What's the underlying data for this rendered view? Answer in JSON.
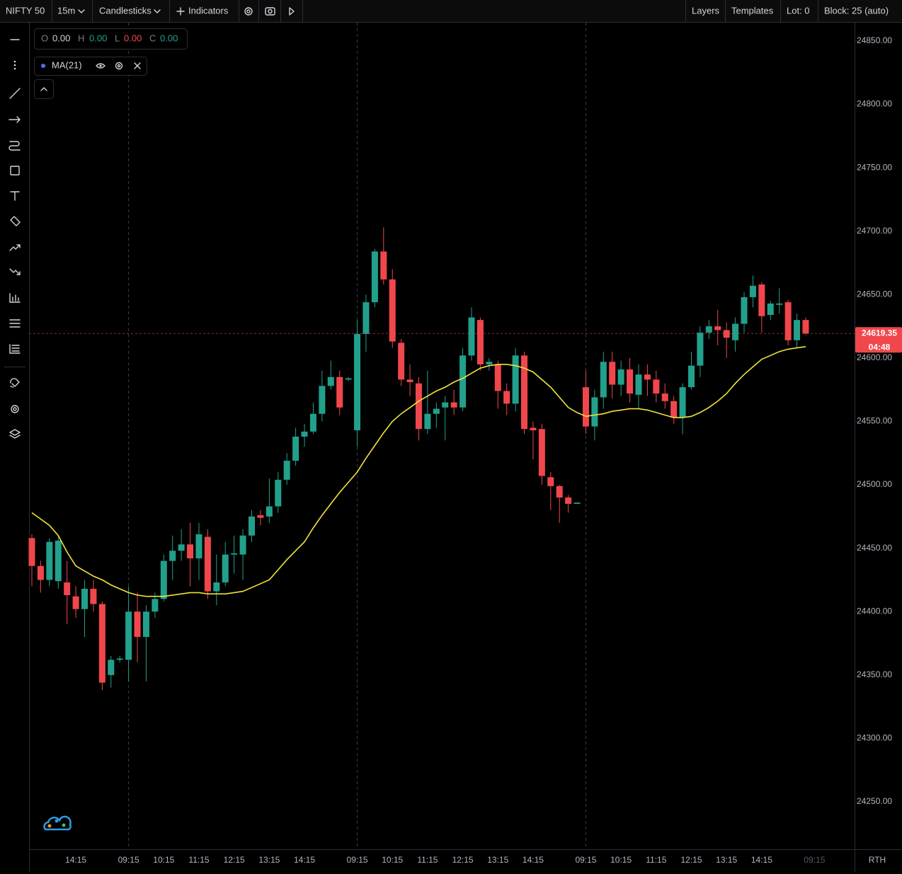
{
  "toolbar": {
    "symbol": "NIFTY 50",
    "interval": "15m",
    "chart_style": "Candlesticks",
    "indicators": "Indicators",
    "layers": "Layers",
    "templates": "Templates",
    "lot": "Lot: 0",
    "block": "Block: 25 (auto)"
  },
  "legend": {
    "o_label": "O",
    "o": "0.00",
    "h_label": "H",
    "h": "0.00",
    "l_label": "L",
    "l": "0.00",
    "c_label": "C",
    "c": "0.00"
  },
  "chart_data": {
    "type": "candlestick",
    "categories": [
      null,
      null,
      null,
      null,
      null,
      "14:15",
      null,
      null,
      null,
      null,
      null,
      "09:15",
      null,
      null,
      null,
      "10:15",
      null,
      null,
      null,
      "11:15",
      null,
      null,
      null,
      "12:15",
      null,
      null,
      null,
      "13:15",
      null,
      null,
      null,
      "14:15",
      null,
      null,
      null,
      null,
      null,
      "09:15",
      null,
      null,
      null,
      "10:15",
      null,
      null,
      null,
      "11:15",
      null,
      null,
      null,
      "12:15",
      null,
      null,
      null,
      "13:15",
      null,
      null,
      null,
      "14:15",
      null,
      null,
      null,
      null,
      null,
      "09:15",
      null,
      null,
      null,
      "10:15",
      null,
      null,
      null,
      "11:15",
      null,
      null,
      null,
      "12:15",
      null,
      null,
      null,
      "13:15",
      null,
      null,
      null,
      "14:15",
      null,
      null,
      null,
      null,
      null,
      "09:15"
    ],
    "open": [
      24458,
      24436,
      24425,
      24424,
      24423,
      24412,
      24402,
      24418,
      24406,
      24350,
      24362,
      24362,
      24400,
      24380,
      24400,
      24410,
      24440,
      24448,
      24453,
      24442,
      24459,
      24416,
      24423,
      24445,
      24445,
      24460,
      24476,
      24475,
      24483,
      24504,
      24519,
      24538,
      24542,
      24556,
      24578,
      24585,
      24583,
      24543,
      24619,
      24644,
      24684,
      24662,
      24612,
      24583,
      24580,
      24544,
      24556,
      24561,
      24565,
      24561,
      24602,
      24630,
      24595,
      24595,
      24574,
      24564,
      24602,
      24545,
      24544,
      24506,
      24499,
      24490,
      24485,
      24577,
      24546,
      24569,
      24597,
      24579,
      24591,
      24571,
      24587,
      24583,
      24572,
      24566,
      24553,
      24577,
      24594,
      24620,
      24625,
      24622,
      24614,
      24627,
      24648,
      24658,
      24634,
      24642,
      24644,
      24614,
      24630,
      null
    ],
    "high": [
      24461,
      24440,
      24458,
      24460,
      24440,
      24420,
      24425,
      24425,
      24408,
      24365,
      24365,
      24420,
      24415,
      24405,
      24415,
      24445,
      24460,
      24465,
      24470,
      24470,
      24465,
      24445,
      24455,
      24460,
      24465,
      24480,
      24480,
      24505,
      24510,
      24525,
      24545,
      24548,
      24565,
      24590,
      24598,
      24590,
      24585,
      24630,
      24650,
      24686,
      24703,
      24670,
      24615,
      24595,
      24585,
      24590,
      24565,
      24570,
      24575,
      24608,
      24640,
      24632,
      24600,
      24598,
      24580,
      24608,
      24605,
      24550,
      24548,
      24510,
      24500,
      24492,
      24486,
      24590,
      24575,
      24605,
      24605,
      24598,
      24600,
      24595,
      24595,
      24590,
      24580,
      24570,
      24580,
      24605,
      24625,
      24630,
      24638,
      24628,
      24632,
      24652,
      24665,
      24660,
      24645,
      24655,
      24646,
      24635,
      24632,
      null
    ],
    "low": [
      24420,
      24415,
      24420,
      24418,
      24390,
      24395,
      24380,
      24400,
      24338,
      24340,
      24360,
      24345,
      24360,
      24345,
      24395,
      24408,
      24425,
      24440,
      24420,
      24425,
      24410,
      24405,
      24420,
      24430,
      24425,
      24455,
      24468,
      24470,
      24478,
      24500,
      24515,
      24530,
      24540,
      24550,
      24575,
      24555,
      24582,
      24530,
      24605,
      24640,
      24658,
      24608,
      24578,
      24570,
      24535,
      24540,
      24545,
      24535,
      24555,
      24558,
      24598,
      24590,
      24590,
      24560,
      24555,
      24558,
      24540,
      24520,
      24500,
      24480,
      24470,
      24478,
      24485,
      24540,
      24535,
      24560,
      24568,
      24570,
      24565,
      24560,
      24570,
      24565,
      24560,
      24548,
      24540,
      24575,
      24585,
      24615,
      24610,
      24600,
      24605,
      24620,
      24640,
      24620,
      24630,
      24635,
      24610,
      24608,
      24618,
      null
    ],
    "close": [
      24436,
      24425,
      24455,
      24456,
      24413,
      24402,
      24418,
      24406,
      24344,
      24362,
      24363,
      24400,
      24380,
      24400,
      24410,
      24440,
      24448,
      24453,
      24442,
      24461,
      24416,
      24423,
      24445,
      24446,
      24460,
      24475,
      24474,
      24483,
      24504,
      24519,
      24538,
      24542,
      24556,
      24578,
      24585,
      24561,
      24584,
      24619,
      24644,
      24684,
      24662,
      24613,
      24583,
      24581,
      24544,
      24556,
      24560,
      24565,
      24561,
      24602,
      24632,
      24595,
      24597,
      24574,
      24564,
      24602,
      24544,
      24543,
      24507,
      24499,
      24490,
      24485,
      24486,
      24546,
      24569,
      24597,
      24579,
      24591,
      24572,
      24587,
      24583,
      24572,
      24566,
      24553,
      24577,
      24594,
      24620,
      24625,
      24622,
      24616,
      24627,
      24648,
      24657,
      24633,
      24643,
      24643,
      24614,
      24630,
      24619.35,
      null
    ],
    "up_color": "#22a08c",
    "down_color": "#f0474c",
    "ma": {
      "name": "MA(21)",
      "color": "#f2e33a",
      "dot_color": "#5b6ee1",
      "values": [
        24478,
        24473,
        24468,
        24460,
        24447,
        24436,
        24432,
        24428,
        24425,
        24421,
        24418,
        24415,
        24413,
        24412,
        24412,
        24412,
        24413,
        24414,
        24415,
        24415,
        24414,
        24414,
        24414,
        24415,
        24416,
        24419,
        24422,
        24425,
        24433,
        24441,
        24448,
        24455,
        24466,
        24476,
        24485,
        24494,
        24502,
        24510,
        24521,
        24531,
        24541,
        24550,
        24556,
        24561,
        24566,
        24570,
        24574,
        24577,
        24581,
        24584,
        24588,
        24592,
        24594,
        24595,
        24595,
        24594,
        24592,
        24589,
        24583,
        24577,
        24569,
        24561,
        24557,
        24554,
        24555,
        24556,
        24558,
        24559,
        24560,
        24560,
        24559,
        24557,
        24555,
        24553,
        24553,
        24554,
        24557,
        24561,
        24566,
        24572,
        24580,
        24587,
        24593,
        24599,
        24602,
        24605,
        24607,
        24608,
        24609,
        null
      ]
    },
    "ylim": [
      24212.6,
      24864.5
    ],
    "yticks": [
      {
        "value": 24250,
        "label": "24250.00"
      },
      {
        "value": 24300,
        "label": "24300.00"
      },
      {
        "value": 24350,
        "label": "24350.00"
      },
      {
        "value": 24400,
        "label": "24400.00"
      },
      {
        "value": 24450,
        "label": "24450.00"
      },
      {
        "value": 24500,
        "label": "24500.00"
      },
      {
        "value": 24550,
        "label": "24550.00"
      },
      {
        "value": 24600,
        "label": "24600.00"
      },
      {
        "value": 24650,
        "label": "24650.00"
      },
      {
        "value": 24700,
        "label": "24700.00"
      },
      {
        "value": 24750,
        "label": "24750.00"
      },
      {
        "value": 24800,
        "label": "24800.00"
      },
      {
        "value": 24850,
        "label": "24850.00"
      }
    ],
    "last_price": 24619.35,
    "countdown": "04:48",
    "session": "RTH"
  }
}
